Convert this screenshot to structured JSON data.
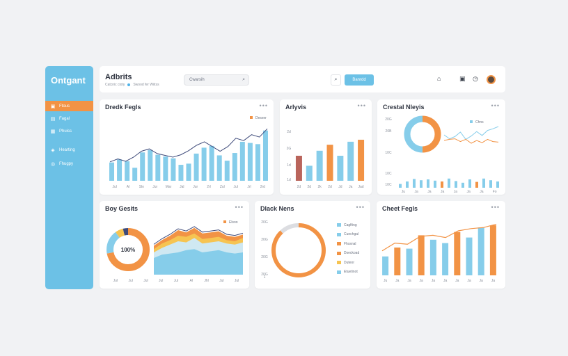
{
  "app": {
    "brand": "Ontgant",
    "title": "Adbrits",
    "subtitle": "Catcnic cioty",
    "status": "Swood fer Wiitss"
  },
  "sidebar": {
    "items": [
      {
        "label": "Ftous",
        "icon": "document-icon",
        "active": true
      },
      {
        "label": "Fagal",
        "icon": "document-icon",
        "active": false
      },
      {
        "label": "Phuiss",
        "icon": "folder-icon",
        "active": false
      },
      {
        "label": "Hearting",
        "icon": "tag-icon",
        "active": false
      },
      {
        "label": "Fhugpy",
        "icon": "globe-icon",
        "active": false
      }
    ]
  },
  "header": {
    "search_value": "Cwarsih",
    "search_icon": "search-icon",
    "search_button_icon": "search-icon",
    "primary_button": "Banrdd",
    "icons": [
      "home-icon",
      "calendar-icon",
      "clock-icon",
      "user-avatar"
    ]
  },
  "colors": {
    "blue": "#86cdea",
    "orange": "#f29345",
    "navy": "#3e4a7a",
    "brown": "#b9645b",
    "yellow": "#f6c452",
    "accent": "#6cc1e6"
  },
  "cards": {
    "c1": {
      "title": "Dredk Fegls",
      "menu": "•••",
      "legend": "Desxer",
      "chart_data": {
        "type": "bar",
        "x_labels": [
          "Jul",
          "Al",
          "Slo",
          "Jur",
          "Mar",
          "Jal",
          "Jur",
          "2rl",
          "Zul",
          "Jul",
          "Jrl",
          "2rd"
        ],
        "values": [
          31,
          36,
          33,
          22,
          48,
          52,
          44,
          41,
          38,
          27,
          29,
          46,
          56,
          59,
          43,
          34,
          47,
          66,
          64,
          62,
          85
        ],
        "line": [
          32,
          37,
          33,
          40,
          50,
          54,
          46,
          43,
          40,
          44,
          51,
          60,
          66,
          58,
          50,
          58,
          72,
          68,
          78,
          74,
          88
        ],
        "ylim": [
          0,
          100
        ]
      }
    },
    "c2": {
      "title": "Arlyvis",
      "menu": "•••",
      "chart_data": {
        "type": "bar",
        "y_ticks": [
          "2d",
          "2G",
          "1d",
          "1d"
        ],
        "x_labels": [
          "2d",
          "2d",
          "2k",
          "2d",
          "Jd",
          "Ja",
          "Jad"
        ],
        "values": [
          50,
          30,
          60,
          72,
          50,
          78,
          82
        ],
        "colors": [
          "brown",
          "blue",
          "blue",
          "orange",
          "blue",
          "blue",
          "orange"
        ],
        "ylim": [
          0,
          100
        ]
      }
    },
    "c3": {
      "title": "Crestal Nleyis",
      "menu": "•••",
      "legend": "Chns",
      "y_ticks": [
        "20G",
        "20B",
        "10C",
        "10C",
        "10C"
      ],
      "donut": [
        {
          "value": 50,
          "color": "orange"
        },
        {
          "value": 50,
          "color": "blue"
        }
      ],
      "chart_data": {
        "type": "bar",
        "x_labels": [
          "Ju",
          "Ja",
          "Ja",
          "Ja",
          "Ja",
          "Ja",
          "Ja",
          "Fo"
        ],
        "values": [
          18,
          30,
          42,
          36,
          40,
          34,
          30,
          44,
          32,
          24,
          40,
          28,
          44,
          36,
          30
        ],
        "line_blue": [
          60,
          46,
          54,
          70,
          44,
          56,
          72,
          58,
          76,
          82,
          90
        ],
        "line_orange": [
          40,
          44,
          46,
          36,
          44,
          30,
          40,
          32,
          44,
          36,
          34
        ],
        "ylim": [
          0,
          100
        ]
      }
    },
    "c4": {
      "title": "Boy Gesits",
      "menu": "•••",
      "legend": "Elsoo",
      "donut_label": "100%",
      "donut": [
        {
          "value": 72,
          "color": "orange"
        },
        {
          "value": 18,
          "color": "blue"
        },
        {
          "value": 6,
          "color": "yellow"
        },
        {
          "value": 4,
          "color": "navy"
        }
      ],
      "chart_data": {
        "type": "area",
        "x_labels": [
          "Jul",
          "Jul",
          "Jul",
          "Jul",
          "Jul",
          "Al",
          "Jhl",
          "Jul",
          "Jul"
        ],
        "series": [
          {
            "values": [
              30,
              36,
              38,
              40,
              44,
              46,
              40,
              42,
              44,
              40,
              38,
              40
            ]
          },
          {
            "values": [
              40,
              48,
              54,
              60,
              58,
              66,
              56,
              58,
              60,
              56,
              54,
              58
            ]
          },
          {
            "values": [
              46,
              56,
              62,
              70,
              68,
              74,
              64,
              66,
              68,
              62,
              60,
              66
            ]
          },
          {
            "values": [
              52,
              62,
              70,
              80,
              76,
              84,
              74,
              76,
              78,
              70,
              68,
              72
            ]
          }
        ],
        "ylim": [
          0,
          100
        ]
      }
    },
    "c5": {
      "title": "Dlack Nens",
      "menu": "•••",
      "y_ticks": [
        "20G",
        "20G",
        "20G",
        "20G",
        "1"
      ],
      "donut": [
        {
          "value": 88,
          "color": "orange"
        },
        {
          "value": 12,
          "color": "grey"
        }
      ],
      "legend": [
        {
          "label": "Cagfting",
          "color": "blue"
        },
        {
          "label": "Cuechgal",
          "color": "blue"
        },
        {
          "label": "Fhssnal",
          "color": "orange"
        },
        {
          "label": "Dseckoad",
          "color": "orange"
        },
        {
          "label": "Duteor",
          "color": "yellow"
        },
        {
          "label": "Etuetinot",
          "color": "blue"
        }
      ]
    },
    "c6": {
      "title": "Cheet Fegls",
      "menu": "•••",
      "chart_data": {
        "type": "bar",
        "x_labels": [
          "Ju",
          "Ja",
          "Ja",
          "Ja",
          "Ja",
          "Ja",
          "Ja",
          "Ja",
          "Ja",
          "Ja"
        ],
        "values": [
          34,
          50,
          48,
          72,
          64,
          58,
          78,
          68,
          86,
          90
        ],
        "colors": [
          "blue",
          "orange",
          "blue",
          "orange",
          "blue",
          "blue",
          "orange",
          "blue",
          "blue",
          "orange"
        ],
        "line": [
          44,
          58,
          56,
          70,
          72,
          68,
          80,
          84,
          86,
          92
        ],
        "ylim": [
          0,
          100
        ]
      }
    }
  }
}
